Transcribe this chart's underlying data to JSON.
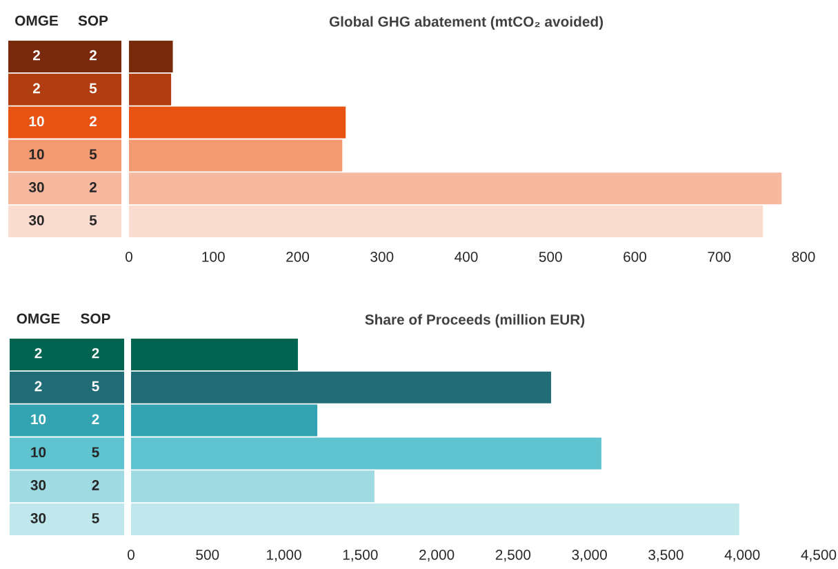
{
  "chart_data": [
    {
      "type": "bar",
      "orientation": "horizontal",
      "title": "Global GHG abatement (mtCO₂ avoided)",
      "ylabel": "OMGE",
      "y2label": "SOP",
      "categories": [
        "2",
        "2",
        "10",
        "10",
        "30",
        "30"
      ],
      "y2_categories": [
        "2",
        "5",
        "2",
        "5",
        "2",
        "5"
      ],
      "values": [
        52,
        50,
        257,
        253,
        774,
        752
      ],
      "colors": [
        "#7a2a0c",
        "#b13e10",
        "#e85314",
        "#f49a72",
        "#f6b89f",
        "#fbdcd0"
      ],
      "xlim": [
        0,
        800
      ],
      "xticks": [
        0,
        100,
        200,
        300,
        400,
        500,
        600,
        700,
        800
      ]
    },
    {
      "type": "bar",
      "orientation": "horizontal",
      "title": "Share of Proceeds (million EUR)",
      "ylabel": "OMGE",
      "y2label": "SOP",
      "categories": [
        "2",
        "2",
        "10",
        "10",
        "30",
        "30"
      ],
      "y2_categories": [
        "2",
        "5",
        "2",
        "5",
        "2",
        "5"
      ],
      "values": [
        1092,
        2749,
        1219,
        3078,
        1593,
        3980
      ],
      "colors": [
        "#006450",
        "#226c78",
        "#33a3b1",
        "#5fc3d0",
        "#a0dbe3",
        "#c0e8ec"
      ],
      "xlim": [
        0,
        4500
      ],
      "xticks": [
        0,
        {
          "value": 500,
          "label": "500"
        },
        {
          "value": 1000,
          "label": "1,000"
        },
        {
          "value": 1500,
          "label": "1,500"
        },
        {
          "value": 2000,
          "label": "2,000"
        },
        {
          "value": 2500,
          "label": "2,500"
        },
        {
          "value": 3000,
          "label": "3,000"
        },
        {
          "value": 3500,
          "label": "3,500"
        },
        {
          "value": 4000,
          "label": "4,000"
        },
        {
          "value": 4500,
          "label": "4,500"
        }
      ]
    }
  ]
}
